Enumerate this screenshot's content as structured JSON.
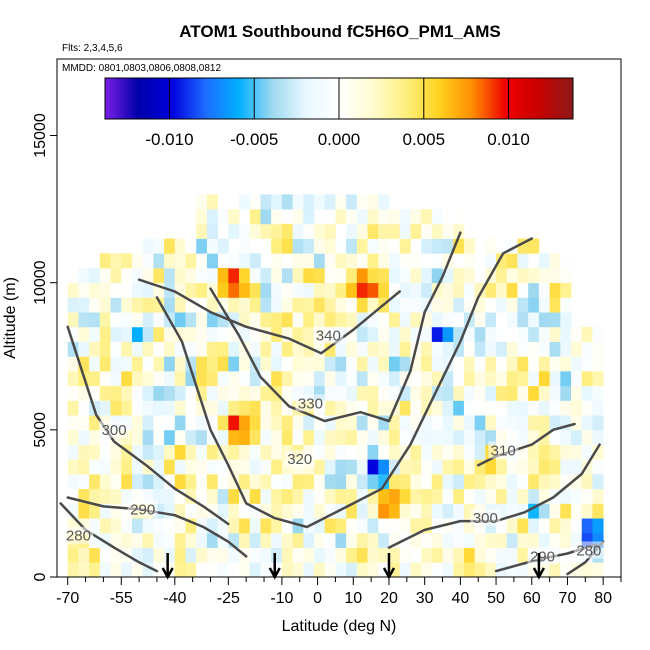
{
  "chart_data": {
    "type": "heatmap",
    "title": "ATOM1 Southbound fC5H6O_PM1_AMS",
    "subtitle_flights": "Flts: 2,3,4,5,6",
    "subtitle_dates": "MMDD: 0801,0803,0806,0808,0812",
    "xlabel": "Latitude (deg N)",
    "ylabel": "Altitude (m)",
    "xlim": [
      -73,
      85
    ],
    "ylim": [
      0,
      17600
    ],
    "x_ticks": [
      -70,
      -55,
      -40,
      -25,
      -10,
      0,
      10,
      20,
      30,
      40,
      50,
      60,
      70,
      80
    ],
    "x_tick_labels": [
      "-70",
      "-55",
      "-40",
      "-25",
      "-10",
      "0",
      "10",
      "20",
      "30",
      "40",
      "50",
      "60",
      "70",
      "80"
    ],
    "x_minor_ticks": [
      -65,
      -60,
      -50,
      -45,
      -35,
      -30,
      -20,
      -15,
      -5,
      5,
      15,
      25,
      35,
      45,
      55,
      65,
      75,
      85
    ],
    "y_ticks": [
      0,
      5000,
      10000,
      15000
    ],
    "y_tick_labels": [
      "0",
      "5000",
      "10000",
      "15000"
    ],
    "colorbar": {
      "range": [
        -0.0138,
        0.0138
      ],
      "ticks": [
        -0.01,
        -0.005,
        0.0,
        0.005,
        0.01
      ],
      "tick_labels": [
        "-0.010",
        "-0.005",
        "0.000",
        "0.005",
        "0.010"
      ],
      "colors": [
        "#7B1FE6",
        "#0000AA",
        "#0000DD",
        "#1E6BFF",
        "#00B0FF",
        "#9DD8F0",
        "#E8F8FF",
        "#FFFFFF",
        "#FFFBD0",
        "#FFEF80",
        "#FFD21E",
        "#FF8C00",
        "#EE0000",
        "#C80000",
        "#8B1A1A"
      ]
    },
    "contours": [
      {
        "label": "280",
        "label_at": [
          -67,
          1300
        ],
        "points": [
          [
            -72,
            2500
          ],
          [
            -65,
            1600
          ],
          [
            -57,
            1000
          ],
          [
            -50,
            500
          ],
          [
            -45,
            200
          ]
        ]
      },
      {
        "label": "290",
        "label_at": [
          -49,
          2200
        ],
        "points": [
          [
            -70,
            2700
          ],
          [
            -60,
            2400
          ],
          [
            -50,
            2300
          ],
          [
            -40,
            2100
          ],
          [
            -32,
            1700
          ],
          [
            -25,
            1200
          ],
          [
            -20,
            700
          ]
        ]
      },
      {
        "label": "300",
        "label_at": [
          -57,
          4900
        ],
        "points": [
          [
            -70,
            8500
          ],
          [
            -66,
            7000
          ],
          [
            -62,
            5500
          ],
          [
            -57,
            4600
          ],
          [
            -48,
            3800
          ],
          [
            -40,
            3000
          ],
          [
            -32,
            2400
          ],
          [
            -25,
            1800
          ]
        ]
      },
      {
        "label": "310",
        "label_at": [
          52,
          4200
        ],
        "points": [
          [
            45,
            3800
          ],
          [
            50,
            4100
          ],
          [
            55,
            4300
          ],
          [
            60,
            4500
          ],
          [
            66,
            5000
          ],
          [
            72,
            5200
          ]
        ]
      },
      {
        "label": "320",
        "label_at": [
          -5,
          3900
        ],
        "points": [
          [
            -45,
            9500
          ],
          [
            -38,
            8000
          ],
          [
            -30,
            5000
          ],
          [
            -25,
            3800
          ],
          [
            -20,
            2500
          ],
          [
            -12,
            2000
          ],
          [
            -3,
            1700
          ],
          [
            10,
            2500
          ],
          [
            18,
            3000
          ],
          [
            26,
            4500
          ],
          [
            34,
            6500
          ],
          [
            40,
            8000
          ],
          [
            45,
            9500
          ],
          [
            52,
            11000
          ],
          [
            60,
            11500
          ]
        ]
      },
      {
        "label": "330",
        "label_at": [
          -2,
          5800
        ],
        "points": [
          [
            -30,
            9800
          ],
          [
            -22,
            8200
          ],
          [
            -16,
            6800
          ],
          [
            -8,
            5800
          ],
          [
            2,
            5300
          ],
          [
            12,
            5600
          ],
          [
            20,
            5300
          ],
          [
            26,
            7000
          ],
          [
            30,
            9000
          ],
          [
            35,
            10200
          ],
          [
            40,
            11700
          ]
        ]
      },
      {
        "label": "340",
        "label_at": [
          3,
          8100
        ],
        "points": [
          [
            -50,
            10100
          ],
          [
            -40,
            9700
          ],
          [
            -30,
            9000
          ],
          [
            -20,
            8500
          ],
          [
            -8,
            8100
          ],
          [
            1,
            7600
          ],
          [
            10,
            8400
          ],
          [
            18,
            9200
          ],
          [
            23,
            9700
          ]
        ]
      },
      {
        "label": "300",
        "label_at": [
          47,
          1900
        ],
        "points": [
          [
            20,
            1000
          ],
          [
            30,
            1600
          ],
          [
            40,
            1900
          ],
          [
            50,
            1900
          ],
          [
            58,
            2200
          ],
          [
            66,
            2700
          ],
          [
            74,
            3500
          ],
          [
            79,
            4500
          ]
        ]
      },
      {
        "label": "290",
        "label_at": [
          63,
          600
        ],
        "points": [
          [
            50,
            200
          ],
          [
            56,
            400
          ],
          [
            62,
            600
          ],
          [
            70,
            800
          ],
          [
            78,
            1100
          ]
        ]
      },
      {
        "label": "280",
        "label_at": [
          76,
          800
        ],
        "points": [
          [
            70,
            100
          ],
          [
            75,
            500
          ],
          [
            80,
            1200
          ]
        ]
      }
    ],
    "arrows_x": [
      -42,
      -12,
      20,
      62
    ],
    "data_extent": {
      "x_range": [
        -70,
        79
      ],
      "max_altitude": 13500
    },
    "values_note": "colored cells depict fC5H6O_PM1_AMS anomaly values mostly between -0.004 and 0.006 with localized extremes near -0.012 and 0.012"
  }
}
